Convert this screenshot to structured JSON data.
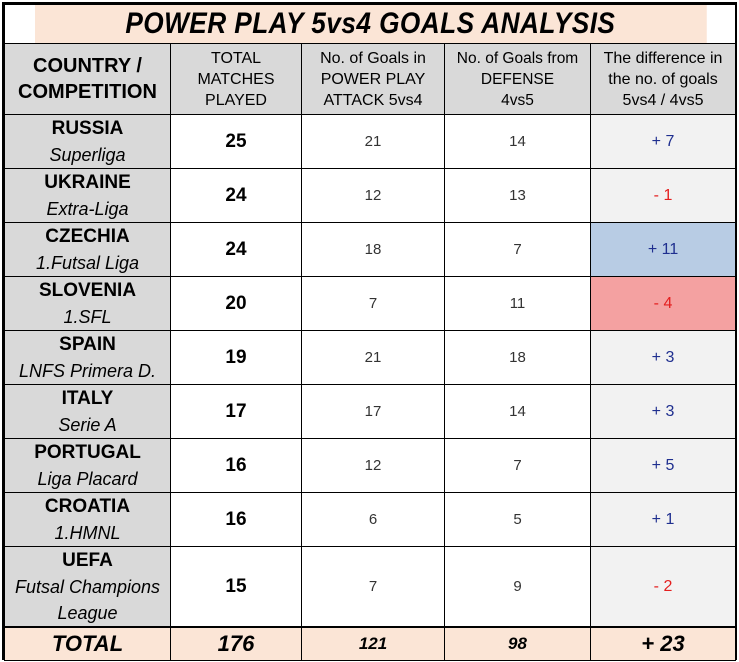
{
  "title": "POWER PLAY 5vs4 GOALS ANALYSIS",
  "headers": {
    "country": [
      "COUNTRY /",
      "COMPETITION"
    ],
    "matches": [
      "TOTAL",
      "MATCHES",
      "PLAYED"
    ],
    "attack": [
      "No. of Goals in",
      "POWER PLAY",
      "ATTACK 5vs4"
    ],
    "defense": [
      "No. of Goals from",
      "DEFENSE",
      "4vs5"
    ],
    "diff": [
      "The difference in",
      "the no. of goals",
      "5vs4 / 4vs5"
    ]
  },
  "rows": [
    {
      "country": "RUSSIA",
      "competition": [
        "Superliga"
      ],
      "matches": "25",
      "attack": "21",
      "defense": "14",
      "diff": "+ 7",
      "sign": "pos",
      "highlight": ""
    },
    {
      "country": "UKRAINE",
      "competition": [
        "Extra-Liga"
      ],
      "matches": "24",
      "attack": "12",
      "defense": "13",
      "diff": "- 1",
      "sign": "neg",
      "highlight": ""
    },
    {
      "country": "CZECHIA",
      "competition": [
        "1.Futsal Liga"
      ],
      "matches": "24",
      "attack": "18",
      "defense": "7",
      "diff": "+ 11",
      "sign": "pos",
      "highlight": "blue"
    },
    {
      "country": "SLOVENIA",
      "competition": [
        "1.SFL"
      ],
      "matches": "20",
      "attack": "7",
      "defense": "11",
      "diff": "- 4",
      "sign": "neg",
      "highlight": "red"
    },
    {
      "country": "SPAIN",
      "competition": [
        "LNFS Primera D."
      ],
      "matches": "19",
      "attack": "21",
      "defense": "18",
      "diff": "+ 3",
      "sign": "pos",
      "highlight": ""
    },
    {
      "country": "ITALY",
      "competition": [
        "Serie A"
      ],
      "matches": "17",
      "attack": "17",
      "defense": "14",
      "diff": "+ 3",
      "sign": "pos",
      "highlight": ""
    },
    {
      "country": "PORTUGAL",
      "competition": [
        "Liga Placard"
      ],
      "matches": "16",
      "attack": "12",
      "defense": "7",
      "diff": "+ 5",
      "sign": "pos",
      "highlight": ""
    },
    {
      "country": "CROATIA",
      "competition": [
        "1.HMNL"
      ],
      "matches": "16",
      "attack": "6",
      "defense": "5",
      "diff": "+ 1",
      "sign": "pos",
      "highlight": ""
    },
    {
      "country": "UEFA",
      "competition": [
        "Futsal Champions",
        "League"
      ],
      "matches": "15",
      "attack": "7",
      "defense": "9",
      "diff": "- 2",
      "sign": "neg",
      "highlight": ""
    }
  ],
  "total": {
    "label": "TOTAL",
    "matches": "176",
    "attack": "121",
    "defense": "98",
    "diff": "+ 23"
  },
  "colors": {
    "title_bg": "#fbe5d6",
    "header_bg": "#d9d9d9",
    "positive": "#1f2f8f",
    "negative": "#e41f1f",
    "highlight_blue": "#b8cce4",
    "highlight_red": "#f4a1a1"
  }
}
